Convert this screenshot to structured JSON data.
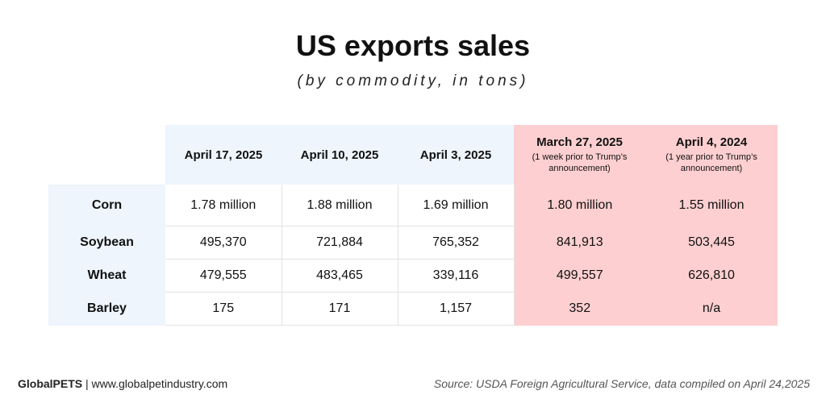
{
  "chart_data": {
    "type": "table",
    "title": "US exports sales",
    "subtitle": "(by commodity, in tons)",
    "columns": [
      {
        "label": "April 17, 2025",
        "note": ""
      },
      {
        "label": "April 10, 2025",
        "note": ""
      },
      {
        "label": "April 3, 2025",
        "note": ""
      },
      {
        "label": "March 27, 2025",
        "note": "(1 week prior to Trump’s announcement)"
      },
      {
        "label": "April 4, 2024",
        "note": "(1 year prior to Trump’s announcement)"
      }
    ],
    "rows": [
      {
        "label": "Corn",
        "values": [
          "1.78 million",
          "1.88 million",
          "1.69 million",
          "1.80 million",
          "1.55 million"
        ]
      },
      {
        "label": "Soybean",
        "values": [
          "495,370",
          "721,884",
          "765,352",
          "841,913",
          "503,445"
        ]
      },
      {
        "label": "Wheat",
        "values": [
          "479,555",
          "483,465",
          "339,116",
          "499,557",
          "626,810"
        ]
      },
      {
        "label": "Barley",
        "values": [
          "175",
          "171",
          "1,157",
          "352",
          "n/a"
        ]
      }
    ],
    "highlight_color": "#fdcfd0",
    "header_color": "#eef5fc"
  },
  "footer": {
    "brand": "GlobalPETS",
    "separator": " | ",
    "site": "www.globalpetindustry.com",
    "source": "Source: USDA Foreign Agricultural Service, data compiled on April 24,2025"
  }
}
